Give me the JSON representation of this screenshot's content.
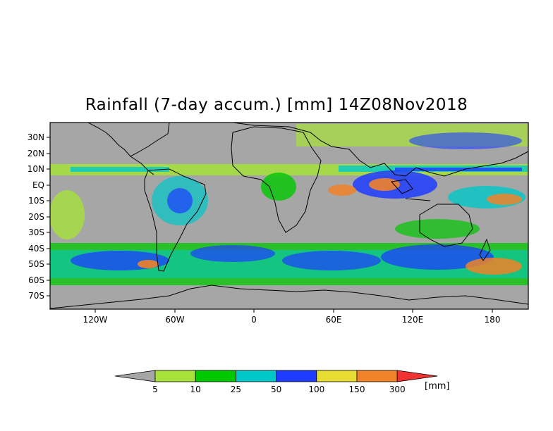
{
  "title": "Rainfall (7-day accum.) [mm] 14Z08Nov2018",
  "lat_labels": [
    "30N",
    "20N",
    "10N",
    "EQ",
    "10S",
    "20S",
    "30S",
    "40S",
    "50S",
    "60S",
    "70S"
  ],
  "lon_labels": [
    "120W",
    "60W",
    "0",
    "60E",
    "120E",
    "180"
  ],
  "colorbar": {
    "ticks": [
      "5",
      "10",
      "25",
      "50",
      "100",
      "150",
      "300"
    ],
    "units": "[mm]",
    "colors": [
      "#a6a6a6",
      "#a6e23a",
      "#00c800",
      "#00c8c8",
      "#1e3cff",
      "#e6dc32",
      "#f08228",
      "#f03232"
    ]
  },
  "colors": {
    "land_ocean_dry": "#a6a6a6",
    "coastline": "#000000"
  }
}
